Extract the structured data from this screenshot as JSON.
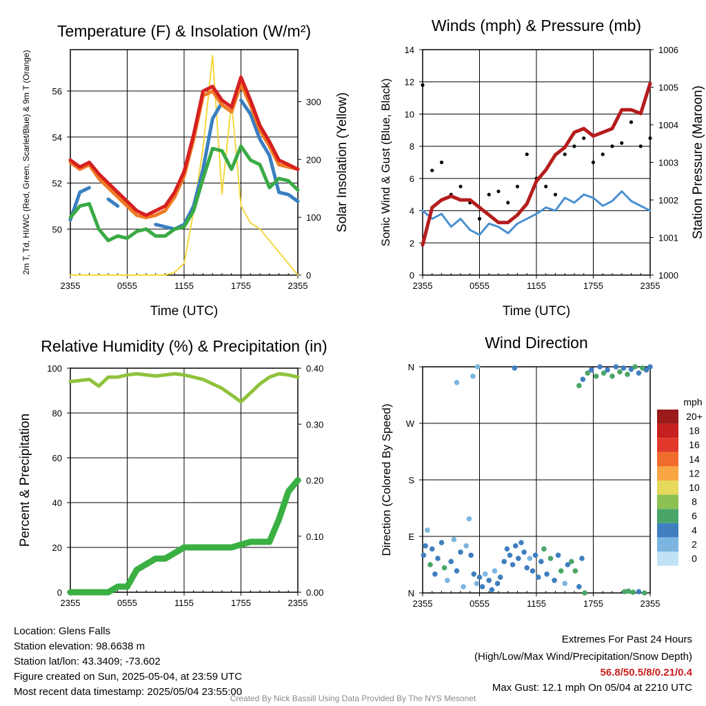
{
  "chart_data": [
    {
      "type": "line",
      "title": "Temperature (F) & Insolation (W/m²)",
      "xlabel": "Time (UTC)",
      "ylabel": "2m T, Td, HI/WC (Red, Green, Scarlet/Blue) & 9m T (Orange)",
      "y2label": "Solar Insolation (Yellow)",
      "xticks": [
        "2355",
        "0555",
        "1155",
        "1755",
        "2355"
      ],
      "yticks": [
        "50",
        "52",
        "54",
        "56"
      ],
      "y2ticks": [
        "0",
        "100",
        "200",
        "300"
      ],
      "ylim": [
        48.0,
        57.8
      ],
      "y2lim": [
        0,
        390
      ],
      "grid": true,
      "x": [
        0,
        1,
        2,
        3,
        4,
        5,
        6,
        7,
        8,
        9,
        10,
        11,
        12,
        13,
        14,
        15,
        16,
        17,
        18,
        19,
        20,
        21,
        22,
        23,
        24
      ],
      "series": [
        {
          "color": "#3a7fc1",
          "values": [
            50.4,
            51.6,
            51.8,
            null,
            51.3,
            51.0,
            null,
            50.6,
            null,
            50.2,
            50.1,
            50.0,
            50.2,
            51.0,
            52.6,
            54.8,
            55.5,
            null,
            55.6,
            55.0,
            53.9,
            53.2,
            51.6,
            51.5,
            51.2
          ]
        },
        {
          "color": "#3aaa45",
          "values": [
            50.5,
            51.0,
            51.1,
            50.0,
            49.5,
            49.7,
            49.6,
            49.9,
            50.0,
            49.7,
            49.7,
            50.0,
            50.1,
            50.8,
            52.2,
            53.5,
            53.4,
            52.6,
            53.6,
            53.0,
            52.8,
            51.8,
            52.2,
            52.1,
            51.7
          ]
        },
        {
          "color": "#f07a24",
          "values": [
            52.9,
            52.6,
            52.8,
            52.2,
            51.8,
            51.4,
            51.0,
            50.6,
            50.5,
            50.6,
            50.8,
            51.4,
            52.3,
            53.9,
            55.8,
            56.0,
            55.4,
            55.1,
            56.3,
            55.4,
            54.3,
            53.6,
            52.8,
            52.7,
            52.6
          ]
        },
        {
          "color": "#d62020",
          "values": [
            53.0,
            52.7,
            52.9,
            52.4,
            52.0,
            51.6,
            51.2,
            50.8,
            50.6,
            50.8,
            51.0,
            51.6,
            52.5,
            54.1,
            56.0,
            56.2,
            55.6,
            55.3,
            56.6,
            55.6,
            54.5,
            53.8,
            53.0,
            52.8,
            52.6
          ]
        }
      ],
      "insolation": {
        "color": "#f5d63d",
        "values": [
          0,
          0,
          0,
          0,
          0,
          0,
          0,
          0,
          0,
          0,
          0,
          5,
          20,
          110,
          220,
          380,
          140,
          300,
          120,
          90,
          80,
          60,
          40,
          20,
          0
        ]
      }
    },
    {
      "type": "line",
      "title": "Winds (mph) & Pressure (mb)",
      "xlabel": "Time (UTC)",
      "ylabel": "Sonic Wind & Gust (Blue, Black)",
      "y2label": "Station Pressure (Maroon)",
      "xticks": [
        "2355",
        "0555",
        "1155",
        "1755",
        "2355"
      ],
      "yticks": [
        "0",
        "2",
        "4",
        "6",
        "8",
        "10",
        "12",
        "14"
      ],
      "y2ticks": [
        "1000",
        "1001",
        "1002",
        "1003",
        "1004",
        "1005",
        "1006"
      ],
      "ylim": [
        0,
        14
      ],
      "y2lim": [
        1000,
        1006
      ],
      "grid": true,
      "x": [
        0,
        1,
        2,
        3,
        4,
        5,
        6,
        7,
        8,
        9,
        10,
        11,
        12,
        13,
        14,
        15,
        16,
        17,
        18,
        19,
        20,
        21,
        22,
        23,
        24
      ],
      "series": [
        {
          "color": "#4a90d0",
          "values": [
            4.0,
            3.5,
            3.8,
            3.0,
            3.5,
            2.8,
            2.5,
            3.2,
            3.0,
            2.6,
            3.2,
            3.5,
            3.8,
            4.2,
            4.0,
            4.8,
            4.5,
            5.0,
            4.8,
            4.3,
            4.6,
            5.2,
            4.6,
            4.3,
            4.0
          ]
        },
        {
          "color": "#b51c1c",
          "values": [
            1000.8,
            1001.8,
            1002.0,
            1002.1,
            1002.0,
            1002.0,
            1001.8,
            1001.6,
            1001.4,
            1001.4,
            1001.6,
            1001.9,
            1002.5,
            1002.8,
            1003.2,
            1003.4,
            1003.8,
            1003.9,
            1003.7,
            1003.8,
            1003.9,
            1004.4,
            1004.4,
            1004.3,
            1005.1
          ]
        }
      ],
      "gust_points": {
        "color": "#000000",
        "values": [
          11.8,
          6.5,
          7.0,
          5.0,
          5.5,
          4.5,
          3.5,
          5.0,
          5.2,
          4.5,
          5.5,
          7.5,
          6.0,
          5.5,
          5.0,
          7.5,
          8.0,
          8.5,
          7.0,
          7.5,
          8.0,
          8.2,
          9.5,
          8.0,
          8.5
        ]
      }
    },
    {
      "type": "line",
      "title": "Relative Humidity (%) & Precipitation (in)",
      "xlabel": "",
      "ylabel": "Percent & Precipitation",
      "xticks": [
        "2355",
        "0555",
        "1155",
        "1755",
        "2355"
      ],
      "yticks": [
        "0",
        "20",
        "40",
        "60",
        "80",
        "100"
      ],
      "y2ticks": [
        "0.00",
        "0.10",
        "0.20",
        "0.30",
        "0.40"
      ],
      "ylim": [
        0,
        100
      ],
      "y2lim": [
        0,
        0.4
      ],
      "grid": true,
      "x": [
        0,
        1,
        2,
        3,
        4,
        5,
        6,
        7,
        8,
        9,
        10,
        11,
        12,
        13,
        14,
        15,
        16,
        17,
        18,
        19,
        20,
        21,
        22,
        23,
        24
      ],
      "series": [
        {
          "color": "#8fc23c",
          "values": [
            94,
            94.5,
            95,
            92,
            96,
            96,
            97,
            97.5,
            97,
            96.5,
            97,
            97.5,
            97,
            96,
            95,
            93,
            91,
            88,
            85,
            89,
            93,
            96,
            97.5,
            97,
            96
          ]
        },
        {
          "color": "#3ab043",
          "values": [
            0,
            0,
            0,
            0,
            0,
            0.01,
            0.01,
            0.04,
            0.05,
            0.06,
            0.06,
            0.07,
            0.08,
            0.08,
            0.08,
            0.08,
            0.08,
            0.08,
            0.085,
            0.09,
            0.09,
            0.09,
            0.13,
            0.18,
            0.2
          ]
        }
      ]
    },
    {
      "type": "scatter",
      "title": "Wind Direction",
      "xlabel": "",
      "ylabel": "Direction (Colored By Speed)",
      "xticks": [
        "2355",
        "0555",
        "1155",
        "1755",
        "2355"
      ],
      "yticks": [
        "N",
        "E",
        "S",
        "W",
        "N"
      ],
      "ylim": [
        0,
        360
      ],
      "grid": true,
      "points": [
        [
          0.1,
          60,
          4
        ],
        [
          0.3,
          75,
          3
        ],
        [
          0.5,
          100,
          2
        ],
        [
          0.8,
          45,
          5
        ],
        [
          1.0,
          70,
          4
        ],
        [
          1.3,
          30,
          3
        ],
        [
          1.6,
          55,
          4
        ],
        [
          2.0,
          80,
          3
        ],
        [
          2.3,
          40,
          5
        ],
        [
          2.6,
          20,
          2
        ],
        [
          3.0,
          50,
          3
        ],
        [
          3.3,
          85,
          2
        ],
        [
          3.6,
          35,
          4
        ],
        [
          4.0,
          65,
          3
        ],
        [
          4.3,
          10,
          2
        ],
        [
          4.6,
          75,
          2
        ],
        [
          4.9,
          118,
          2
        ],
        [
          5.1,
          60,
          4
        ],
        [
          5.4,
          30,
          3
        ],
        [
          5.7,
          15,
          2
        ],
        [
          6.0,
          25,
          3
        ],
        [
          6.3,
          10,
          4
        ],
        [
          6.6,
          30,
          2
        ],
        [
          7.0,
          20,
          4
        ],
        [
          7.3,
          5,
          3
        ],
        [
          7.6,
          35,
          2
        ],
        [
          7.9,
          15,
          4
        ],
        [
          8.2,
          25,
          3
        ],
        [
          8.6,
          50,
          4
        ],
        [
          8.9,
          70,
          3
        ],
        [
          9.2,
          60,
          4
        ],
        [
          9.5,
          45,
          3
        ],
        [
          9.8,
          75,
          4
        ],
        [
          10.1,
          55,
          3
        ],
        [
          10.4,
          80,
          4
        ],
        [
          10.7,
          65,
          3
        ],
        [
          11.0,
          40,
          4
        ],
        [
          11.3,
          55,
          2
        ],
        [
          11.6,
          35,
          3
        ],
        [
          11.9,
          60,
          4
        ],
        [
          12.2,
          25,
          3
        ],
        [
          12.5,
          50,
          4
        ],
        [
          12.8,
          70,
          5
        ],
        [
          13.1,
          30,
          3
        ],
        [
          13.5,
          55,
          6
        ],
        [
          13.9,
          20,
          4
        ],
        [
          14.3,
          60,
          3
        ],
        [
          14.6,
          35,
          5
        ],
        [
          15.0,
          15,
          2
        ],
        [
          15.3,
          45,
          4
        ],
        [
          15.7,
          50,
          6
        ],
        [
          16.1,
          35,
          5
        ],
        [
          16.5,
          10,
          4
        ],
        [
          16.8,
          55,
          4
        ],
        [
          17.1,
          0,
          5
        ],
        [
          3.6,
          335,
          2
        ],
        [
          5.3,
          345,
          2
        ],
        [
          5.8,
          360,
          2
        ],
        [
          9.7,
          358,
          4
        ],
        [
          16.5,
          330,
          5
        ],
        [
          16.9,
          340,
          4
        ],
        [
          17.4,
          350,
          6
        ],
        [
          17.8,
          355,
          4
        ],
        [
          18.3,
          345,
          5
        ],
        [
          18.7,
          360,
          4
        ],
        [
          19.1,
          350,
          6
        ],
        [
          19.5,
          355,
          4
        ],
        [
          20.0,
          345,
          5
        ],
        [
          20.4,
          360,
          4
        ],
        [
          20.8,
          352,
          5
        ],
        [
          21.2,
          358,
          4
        ],
        [
          21.6,
          348,
          6
        ],
        [
          22.0,
          356,
          4
        ],
        [
          22.4,
          360,
          5
        ],
        [
          22.8,
          350,
          4
        ],
        [
          23.2,
          358,
          6
        ],
        [
          23.6,
          355,
          4
        ],
        [
          24.0,
          360,
          4
        ],
        [
          21.3,
          2,
          5
        ],
        [
          21.7,
          3,
          6
        ],
        [
          22.2,
          1,
          5
        ],
        [
          22.8,
          2,
          4
        ],
        [
          23.4,
          0,
          5
        ]
      ],
      "legend": {
        "unit": "mph",
        "labels": [
          "20+",
          "18",
          "16",
          "14",
          "12",
          "10",
          "8",
          "6",
          "4",
          "2",
          "0"
        ],
        "colors": [
          "#9b1b1b",
          "#c8201f",
          "#e0392c",
          "#f06c2c",
          "#f8a543",
          "#e6d95c",
          "#8cc153",
          "#4aa668",
          "#3f7fbf",
          "#7cb6e0",
          "#bfe3f5"
        ]
      }
    }
  ],
  "info": {
    "location": "Location: Glens Falls",
    "elevation": "Station elevation: 98.6638 m",
    "latlon": "Station lat/lon: 43.3409; -73.602",
    "created": "Figure created on Sun, 2025-05-04, at 23:59 UTC",
    "recent": "Most recent data timestamp: 2025/05/04 23:55:00"
  },
  "extremes": {
    "title": "Extremes For Past 24 Hours",
    "subtitle": "(High/Low/Max Wind/Precipitation/Snow Depth)",
    "values": "56.8/50.5/8/0.21/0.4",
    "gust": "Max Gust: 12.1 mph On 05/04 at 2210 UTC"
  },
  "footer": "Created By Nick Bassill Using Data Provided By The NYS Mesonet"
}
